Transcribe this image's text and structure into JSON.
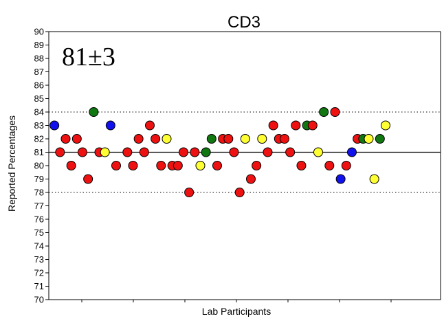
{
  "chart_data": {
    "type": "scatter",
    "title": "CD3",
    "xlabel": "Lab Participants",
    "ylabel": "Reported Percentages",
    "annotation": "81±3",
    "ylim": [
      70,
      90
    ],
    "yticks": [
      70,
      71,
      72,
      73,
      74,
      75,
      76,
      77,
      78,
      79,
      80,
      81,
      82,
      83,
      84,
      85,
      86,
      87,
      88,
      89,
      90
    ],
    "grid": false,
    "reference_lines": [
      {
        "value": 81,
        "style": "solid"
      },
      {
        "value": 84,
        "style": "dotted"
      },
      {
        "value": 78,
        "style": "dotted"
      }
    ],
    "colors": {
      "red": "#ee1111",
      "blue": "#1111ee",
      "green": "#117711",
      "yellow": "#ffff33"
    },
    "points": [
      {
        "x": 1,
        "y": 83,
        "color": "blue"
      },
      {
        "x": 2,
        "y": 81,
        "color": "red"
      },
      {
        "x": 3,
        "y": 82,
        "color": "red"
      },
      {
        "x": 4,
        "y": 80,
        "color": "red"
      },
      {
        "x": 5,
        "y": 82,
        "color": "red"
      },
      {
        "x": 6,
        "y": 81,
        "color": "red"
      },
      {
        "x": 7,
        "y": 79,
        "color": "red"
      },
      {
        "x": 8,
        "y": 84,
        "color": "green"
      },
      {
        "x": 9,
        "y": 81,
        "color": "red"
      },
      {
        "x": 10,
        "y": 81,
        "color": "yellow"
      },
      {
        "x": 11,
        "y": 83,
        "color": "blue"
      },
      {
        "x": 12,
        "y": 80,
        "color": "red"
      },
      {
        "x": 14,
        "y": 81,
        "color": "red"
      },
      {
        "x": 15,
        "y": 80,
        "color": "red"
      },
      {
        "x": 16,
        "y": 82,
        "color": "red"
      },
      {
        "x": 17,
        "y": 81,
        "color": "red"
      },
      {
        "x": 18,
        "y": 83,
        "color": "red"
      },
      {
        "x": 19,
        "y": 82,
        "color": "red"
      },
      {
        "x": 20,
        "y": 80,
        "color": "red"
      },
      {
        "x": 21,
        "y": 82,
        "color": "yellow"
      },
      {
        "x": 22,
        "y": 80,
        "color": "red"
      },
      {
        "x": 23,
        "y": 80,
        "color": "red"
      },
      {
        "x": 24,
        "y": 81,
        "color": "red"
      },
      {
        "x": 25,
        "y": 78,
        "color": "red"
      },
      {
        "x": 26,
        "y": 81,
        "color": "red"
      },
      {
        "x": 27,
        "y": 80,
        "color": "yellow"
      },
      {
        "x": 28,
        "y": 81,
        "color": "green"
      },
      {
        "x": 29,
        "y": 82,
        "color": "green"
      },
      {
        "x": 30,
        "y": 80,
        "color": "red"
      },
      {
        "x": 31,
        "y": 82,
        "color": "red"
      },
      {
        "x": 32,
        "y": 82,
        "color": "red"
      },
      {
        "x": 33,
        "y": 81,
        "color": "red"
      },
      {
        "x": 34,
        "y": 78,
        "color": "red"
      },
      {
        "x": 35,
        "y": 82,
        "color": "yellow"
      },
      {
        "x": 36,
        "y": 79,
        "color": "red"
      },
      {
        "x": 37,
        "y": 80,
        "color": "red"
      },
      {
        "x": 38,
        "y": 82,
        "color": "yellow"
      },
      {
        "x": 39,
        "y": 81,
        "color": "red"
      },
      {
        "x": 40,
        "y": 83,
        "color": "red"
      },
      {
        "x": 41,
        "y": 82,
        "color": "red"
      },
      {
        "x": 42,
        "y": 82,
        "color": "red"
      },
      {
        "x": 43,
        "y": 81,
        "color": "red"
      },
      {
        "x": 44,
        "y": 83,
        "color": "red"
      },
      {
        "x": 45,
        "y": 80,
        "color": "red"
      },
      {
        "x": 46,
        "y": 83,
        "color": "green"
      },
      {
        "x": 47,
        "y": 83,
        "color": "red"
      },
      {
        "x": 48,
        "y": 81,
        "color": "yellow"
      },
      {
        "x": 49,
        "y": 84,
        "color": "green"
      },
      {
        "x": 50,
        "y": 80,
        "color": "red"
      },
      {
        "x": 51,
        "y": 84,
        "color": "red"
      },
      {
        "x": 52,
        "y": 79,
        "color": "blue"
      },
      {
        "x": 53,
        "y": 80,
        "color": "red"
      },
      {
        "x": 54,
        "y": 81,
        "color": "blue"
      },
      {
        "x": 55,
        "y": 82,
        "color": "red"
      },
      {
        "x": 56,
        "y": 82,
        "color": "green"
      },
      {
        "x": 57,
        "y": 82,
        "color": "yellow"
      },
      {
        "x": 58,
        "y": 79,
        "color": "yellow"
      },
      {
        "x": 59,
        "y": 82,
        "color": "green"
      },
      {
        "x": 60,
        "y": 83,
        "color": "yellow"
      }
    ]
  }
}
